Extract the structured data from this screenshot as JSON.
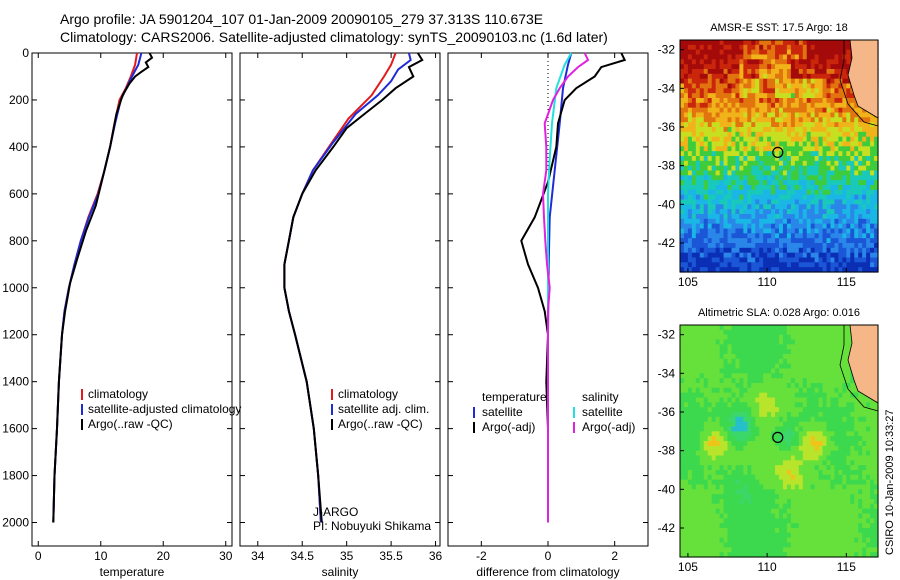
{
  "header": {
    "line1": "Argo profile: JA 5901204_107 01-Jan-2009 20090105_279 37.313S 110.673E",
    "line2": "Climatology: CARS2006. Satellite-adjusted climatology: synTS_20090103.nc (1.6d later)"
  },
  "side_label": "CSIRO 10-Jan-2009 10:33:27",
  "colors": {
    "climatology": "#e31a1c",
    "satellite": "#1f2bd6",
    "argo": "#000000",
    "magenta": "#e022e0",
    "cyan": "#22e0e0",
    "land": "#f5b788"
  },
  "chart_data": [
    {
      "type": "line",
      "id": "temperature",
      "xlabel": "temperature",
      "ylabel": "",
      "xlim": [
        -1,
        31
      ],
      "ylim": [
        2100,
        0
      ],
      "xticks": [
        0,
        10,
        20,
        30
      ],
      "yticks": [
        0,
        200,
        400,
        600,
        800,
        1000,
        1200,
        1400,
        1600,
        1800,
        2000
      ],
      "legend": [
        "climatology",
        "satellite-adjusted climatology",
        "Argo(..raw -QC)"
      ],
      "series": [
        {
          "name": "climatology",
          "color": "#e31a1c",
          "points": [
            [
              15.8,
              0
            ],
            [
              15.5,
              50
            ],
            [
              14.8,
              100
            ],
            [
              14.0,
              150
            ],
            [
              13.0,
              200
            ],
            [
              12.2,
              300
            ],
            [
              11.5,
              400
            ],
            [
              10.6,
              500
            ],
            [
              9.5,
              600
            ],
            [
              8.0,
              700
            ],
            [
              6.8,
              800
            ],
            [
              5.8,
              900
            ],
            [
              4.9,
              1000
            ],
            [
              4.2,
              1100
            ],
            [
              3.8,
              1200
            ],
            [
              3.3,
              1400
            ],
            [
              3.0,
              1600
            ],
            [
              2.6,
              1800
            ],
            [
              2.4,
              2000
            ]
          ]
        },
        {
          "name": "satellite-adjusted climatology",
          "color": "#1f2bd6",
          "points": [
            [
              16.5,
              0
            ],
            [
              16.0,
              50
            ],
            [
              15.0,
              100
            ],
            [
              14.1,
              150
            ],
            [
              13.2,
              200
            ],
            [
              12.3,
              300
            ],
            [
              11.5,
              400
            ],
            [
              10.6,
              500
            ],
            [
              9.6,
              600
            ],
            [
              8.1,
              700
            ],
            [
              6.8,
              800
            ],
            [
              5.8,
              900
            ],
            [
              4.9,
              1000
            ],
            [
              4.2,
              1100
            ],
            [
              3.8,
              1200
            ],
            [
              3.3,
              1400
            ],
            [
              3.0,
              1600
            ],
            [
              2.6,
              1800
            ],
            [
              2.4,
              2000
            ]
          ]
        },
        {
          "name": "Argo(..raw -QC)",
          "color": "#000000",
          "points": [
            [
              17.8,
              0
            ],
            [
              18.2,
              20
            ],
            [
              17.2,
              40
            ],
            [
              17.6,
              60
            ],
            [
              16.5,
              80
            ],
            [
              15.5,
              100
            ],
            [
              14.6,
              130
            ],
            [
              13.5,
              180
            ],
            [
              12.5,
              260
            ],
            [
              11.5,
              400
            ],
            [
              10.4,
              520
            ],
            [
              9.2,
              650
            ],
            [
              7.6,
              760
            ],
            [
              6.2,
              880
            ],
            [
              5.1,
              980
            ],
            [
              4.3,
              1100
            ],
            [
              3.8,
              1200
            ],
            [
              3.3,
              1400
            ],
            [
              3.0,
              1600
            ],
            [
              2.6,
              1800
            ],
            [
              2.4,
              2000
            ]
          ]
        }
      ]
    },
    {
      "type": "line",
      "id": "salinity",
      "xlabel": "salinity",
      "ylabel": "",
      "xlim": [
        33.8,
        36.05
      ],
      "ylim": [
        2100,
        0
      ],
      "xticks": [
        34,
        34.5,
        35,
        35.5,
        36
      ],
      "legend": [
        "climatology",
        "satellite adj. clim.",
        "Argo(..raw -QC)"
      ],
      "annotations": [
        "J-ARGO",
        "PI: Nobuyuki Shikama"
      ],
      "series": [
        {
          "name": "climatology",
          "color": "#e31a1c",
          "points": [
            [
              35.55,
              0
            ],
            [
              35.5,
              50
            ],
            [
              35.42,
              100
            ],
            [
              35.28,
              180
            ],
            [
              35.02,
              280
            ],
            [
              34.8,
              400
            ],
            [
              34.62,
              500
            ],
            [
              34.5,
              600
            ],
            [
              34.4,
              700
            ],
            [
              34.35,
              800
            ],
            [
              34.3,
              900
            ],
            [
              34.3,
              1000
            ],
            [
              34.35,
              1100
            ],
            [
              34.42,
              1200
            ],
            [
              34.55,
              1400
            ],
            [
              34.63,
              1600
            ],
            [
              34.68,
              1800
            ],
            [
              34.71,
              2000
            ]
          ]
        },
        {
          "name": "satellite adj. clim.",
          "color": "#1f2bd6",
          "points": [
            [
              35.7,
              0
            ],
            [
              35.72,
              30
            ],
            [
              35.58,
              70
            ],
            [
              35.5,
              120
            ],
            [
              35.35,
              180
            ],
            [
              35.1,
              260
            ],
            [
              34.85,
              380
            ],
            [
              34.62,
              500
            ],
            [
              34.5,
              600
            ],
            [
              34.4,
              700
            ],
            [
              34.35,
              800
            ],
            [
              34.3,
              900
            ],
            [
              34.3,
              1000
            ],
            [
              34.35,
              1100
            ],
            [
              34.42,
              1200
            ],
            [
              34.55,
              1400
            ],
            [
              34.63,
              1600
            ],
            [
              34.68,
              1800
            ],
            [
              34.71,
              2000
            ]
          ]
        },
        {
          "name": "Argo(..raw -QC)",
          "color": "#000000",
          "points": [
            [
              35.8,
              0
            ],
            [
              35.85,
              30
            ],
            [
              35.7,
              60
            ],
            [
              35.75,
              100
            ],
            [
              35.55,
              150
            ],
            [
              35.4,
              200
            ],
            [
              35.2,
              260
            ],
            [
              35.0,
              320
            ],
            [
              34.85,
              400
            ],
            [
              34.65,
              500
            ],
            [
              34.5,
              600
            ],
            [
              34.4,
              700
            ],
            [
              34.35,
              800
            ],
            [
              34.3,
              900
            ],
            [
              34.3,
              1000
            ],
            [
              34.35,
              1100
            ],
            [
              34.42,
              1200
            ],
            [
              34.55,
              1400
            ],
            [
              34.63,
              1600
            ],
            [
              34.68,
              1800
            ],
            [
              34.72,
              2000
            ]
          ]
        }
      ]
    },
    {
      "type": "line",
      "id": "difference",
      "xlabel": "difference from climatology",
      "ylabel": "",
      "xlim": [
        -3,
        3
      ],
      "ylim": [
        2100,
        0
      ],
      "xticks": [
        -2,
        0,
        2
      ],
      "legend_titles": [
        "temperature",
        "salinity"
      ],
      "legend": [
        "satellite",
        "Argo(-adj)",
        "satellite",
        "Argo(-adj)"
      ],
      "series": [
        {
          "name": "satellite",
          "color": "#1f2bd6",
          "points": [
            [
              0.7,
              0
            ],
            [
              0.6,
              50
            ],
            [
              0.45,
              150
            ],
            [
              0.35,
              300
            ],
            [
              0.2,
              500
            ],
            [
              0.05,
              700
            ],
            [
              0.02,
              900
            ],
            [
              0.0,
              1200
            ],
            [
              0.0,
              2000
            ]
          ]
        },
        {
          "name": "Argo(-adj)",
          "color": "#000000",
          "points": [
            [
              2.2,
              0
            ],
            [
              2.3,
              30
            ],
            [
              1.6,
              60
            ],
            [
              1.4,
              100
            ],
            [
              0.85,
              150
            ],
            [
              0.5,
              200
            ],
            [
              0.3,
              300
            ],
            [
              0.25,
              400
            ],
            [
              0.0,
              550
            ],
            [
              -0.4,
              700
            ],
            [
              -0.8,
              800
            ],
            [
              -0.6,
              900
            ],
            [
              -0.3,
              1000
            ],
            [
              -0.1,
              1100
            ],
            [
              0.0,
              1200
            ],
            [
              -0.05,
              1400
            ],
            [
              0.0,
              1600
            ],
            [
              0.0,
              2000
            ]
          ]
        },
        {
          "name": "satellite",
          "color": "#22e0e0",
          "points": [
            [
              0.7,
              0
            ],
            [
              0.5,
              50
            ],
            [
              0.25,
              150
            ],
            [
              0.12,
              300
            ],
            [
              0.05,
              450
            ],
            [
              0.0,
              600
            ],
            [
              0.0,
              2000
            ]
          ]
        },
        {
          "name": "Argo(-adj)",
          "color": "#e022e0",
          "points": [
            [
              1.1,
              0
            ],
            [
              1.2,
              30
            ],
            [
              0.9,
              60
            ],
            [
              0.6,
              100
            ],
            [
              0.35,
              150
            ],
            [
              0.15,
              200
            ],
            [
              -0.1,
              300
            ],
            [
              -0.05,
              400
            ],
            [
              -0.05,
              500
            ],
            [
              -0.15,
              600
            ],
            [
              -0.12,
              700
            ],
            [
              -0.08,
              800
            ],
            [
              -0.03,
              900
            ],
            [
              0.05,
              1000
            ],
            [
              0.0,
              1100
            ],
            [
              0.0,
              2000
            ]
          ]
        }
      ]
    },
    {
      "type": "heatmap",
      "id": "sst-map",
      "title": "AMSR-E SST: 17.5 Argo: 18",
      "xlim": [
        104.5,
        117
      ],
      "ylim": [
        -43.5,
        -31.5
      ],
      "xticks": [
        105,
        110,
        115
      ],
      "yticks": [
        -32,
        -34,
        -36,
        -38,
        -40,
        -42
      ],
      "marker": [
        110.673,
        -37.313
      ]
    },
    {
      "type": "heatmap",
      "id": "sla-map",
      "title": "Altimetric SLA: 0.028 Argo: 0.016",
      "xlim": [
        104.5,
        117
      ],
      "ylim": [
        -43.5,
        -31.5
      ],
      "xticks": [
        105,
        110,
        115
      ],
      "yticks": [
        -32,
        -34,
        -36,
        -38,
        -40,
        -42
      ],
      "marker": [
        110.673,
        -37.313
      ]
    }
  ]
}
